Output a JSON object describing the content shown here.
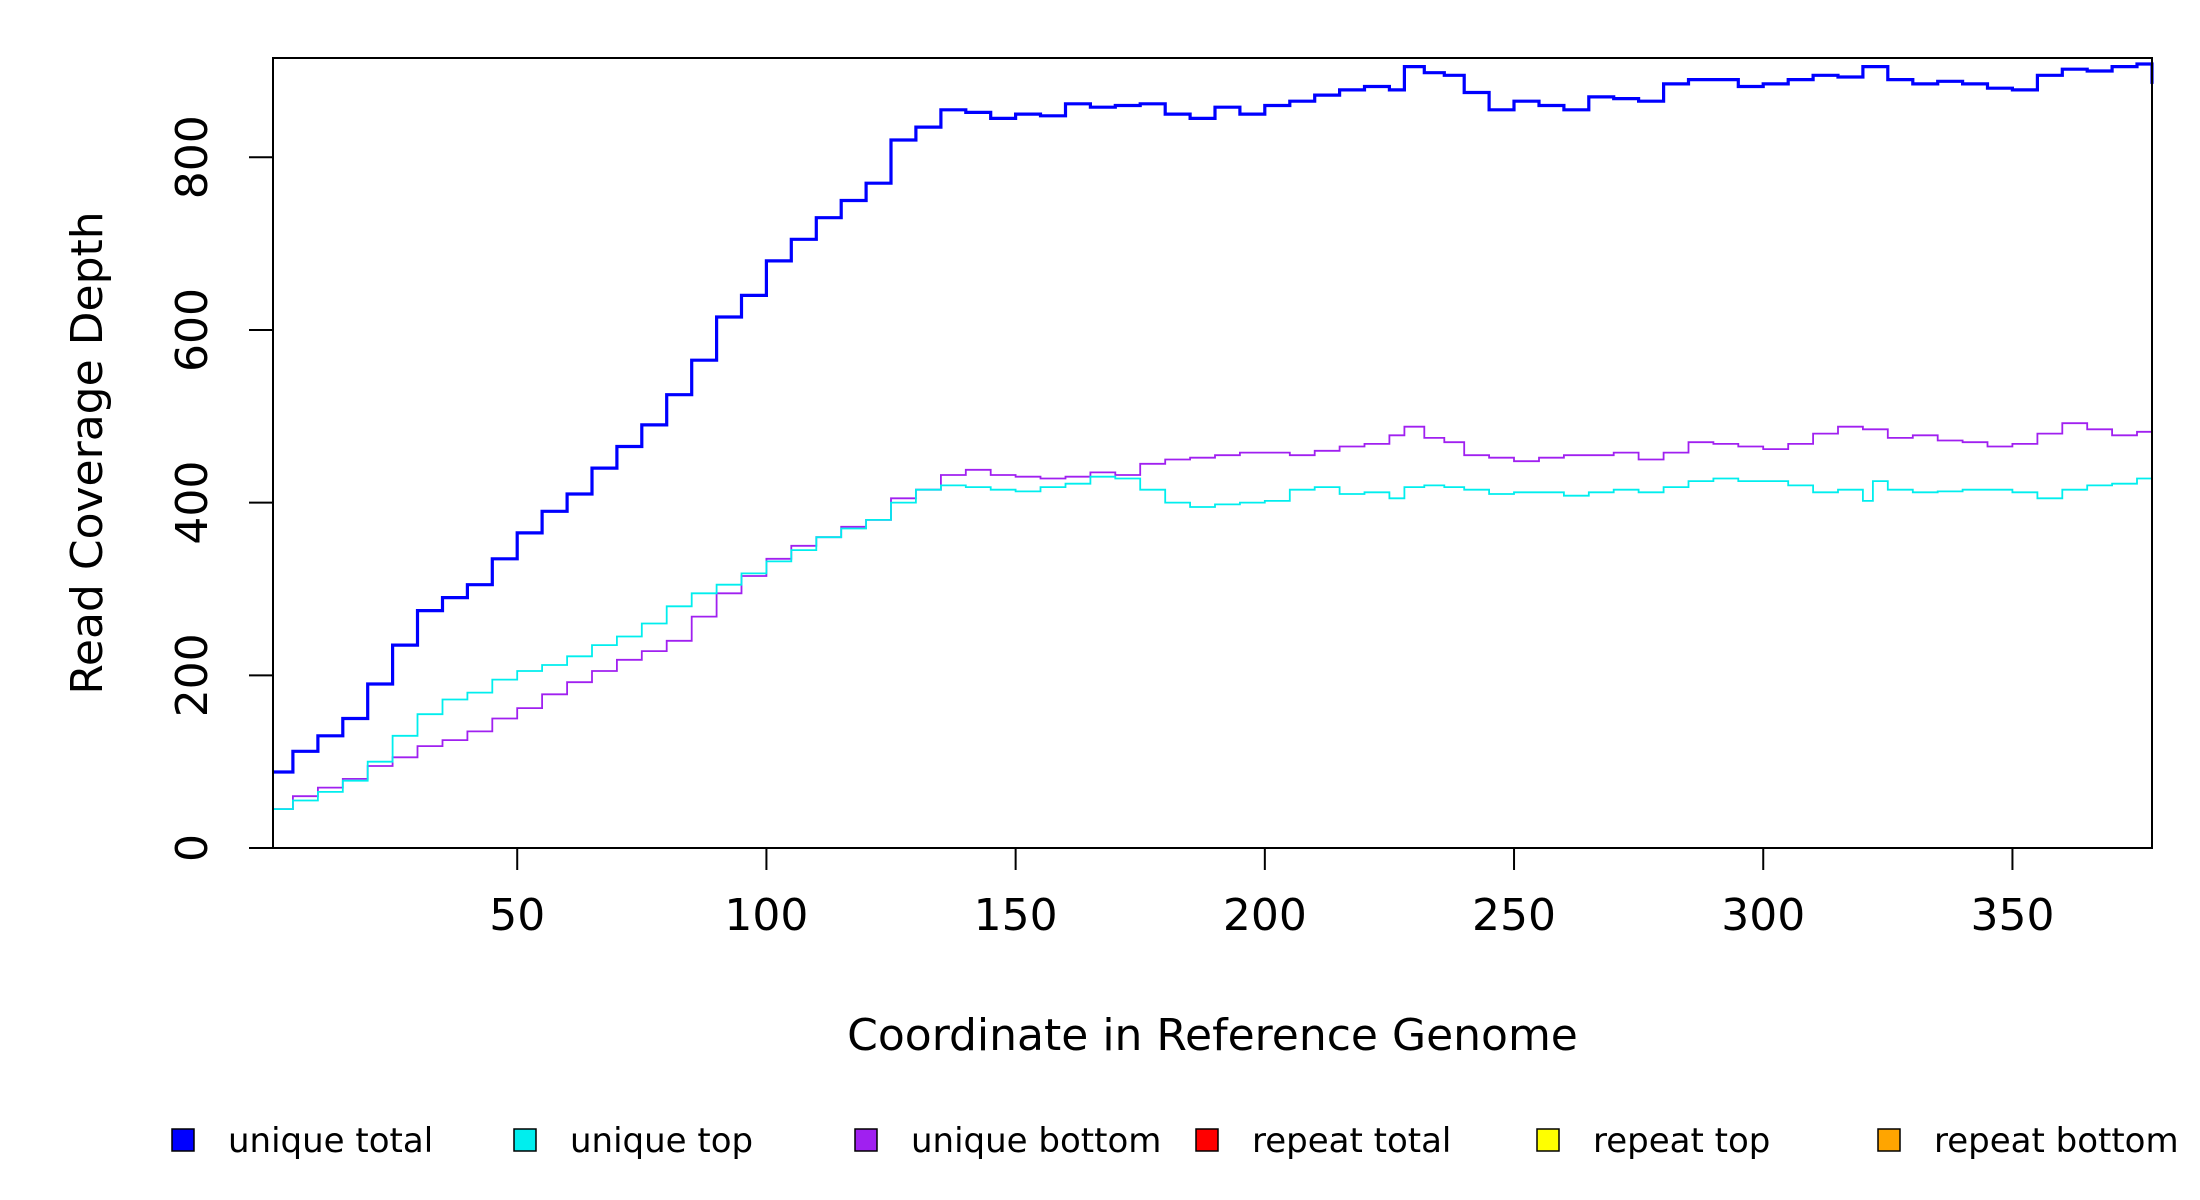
{
  "chart_data": {
    "type": "line",
    "step": true,
    "xlabel": "Coordinate in Reference Genome",
    "ylabel": "Read Coverage Depth",
    "xlim": [
      1,
      378
    ],
    "ylim": [
      0,
      915
    ],
    "xticks": [
      50,
      100,
      150,
      200,
      250,
      300,
      350
    ],
    "yticks": [
      0,
      200,
      400,
      600,
      800
    ],
    "legend_position": "bottom",
    "series": [
      {
        "name": "unique total",
        "color": "#0000ff",
        "points": [
          [
            1,
            88
          ],
          [
            5,
            112
          ],
          [
            10,
            130
          ],
          [
            15,
            150
          ],
          [
            20,
            190
          ],
          [
            25,
            235
          ],
          [
            30,
            275
          ],
          [
            35,
            290
          ],
          [
            40,
            305
          ],
          [
            45,
            335
          ],
          [
            50,
            365
          ],
          [
            55,
            390
          ],
          [
            60,
            410
          ],
          [
            65,
            440
          ],
          [
            70,
            465
          ],
          [
            75,
            490
          ],
          [
            80,
            525
          ],
          [
            85,
            565
          ],
          [
            90,
            615
          ],
          [
            95,
            640
          ],
          [
            100,
            680
          ],
          [
            105,
            705
          ],
          [
            110,
            730
          ],
          [
            115,
            750
          ],
          [
            120,
            770
          ],
          [
            125,
            820
          ],
          [
            130,
            835
          ],
          [
            135,
            855
          ],
          [
            140,
            852
          ],
          [
            145,
            845
          ],
          [
            150,
            850
          ],
          [
            155,
            848
          ],
          [
            160,
            862
          ],
          [
            165,
            858
          ],
          [
            170,
            860
          ],
          [
            175,
            862
          ],
          [
            180,
            850
          ],
          [
            185,
            845
          ],
          [
            190,
            858
          ],
          [
            195,
            850
          ],
          [
            200,
            860
          ],
          [
            205,
            865
          ],
          [
            210,
            872
          ],
          [
            215,
            878
          ],
          [
            220,
            882
          ],
          [
            225,
            878
          ],
          [
            228,
            905
          ],
          [
            232,
            898
          ],
          [
            236,
            895
          ],
          [
            240,
            875
          ],
          [
            245,
            855
          ],
          [
            250,
            865
          ],
          [
            255,
            860
          ],
          [
            260,
            855
          ],
          [
            265,
            870
          ],
          [
            270,
            868
          ],
          [
            275,
            865
          ],
          [
            280,
            885
          ],
          [
            285,
            890
          ],
          [
            290,
            890
          ],
          [
            295,
            882
          ],
          [
            300,
            885
          ],
          [
            305,
            890
          ],
          [
            310,
            895
          ],
          [
            315,
            893
          ],
          [
            320,
            905
          ],
          [
            325,
            890
          ],
          [
            330,
            885
          ],
          [
            335,
            888
          ],
          [
            340,
            885
          ],
          [
            345,
            880
          ],
          [
            350,
            878
          ],
          [
            355,
            895
          ],
          [
            360,
            902
          ],
          [
            365,
            900
          ],
          [
            370,
            905
          ],
          [
            375,
            908
          ],
          [
            378,
            885
          ]
        ]
      },
      {
        "name": "unique top",
        "color": "#00eeee",
        "points": [
          [
            1,
            45
          ],
          [
            5,
            55
          ],
          [
            10,
            65
          ],
          [
            15,
            78
          ],
          [
            20,
            100
          ],
          [
            25,
            130
          ],
          [
            30,
            155
          ],
          [
            35,
            172
          ],
          [
            40,
            180
          ],
          [
            45,
            195
          ],
          [
            50,
            205
          ],
          [
            55,
            212
          ],
          [
            60,
            222
          ],
          [
            65,
            235
          ],
          [
            70,
            245
          ],
          [
            75,
            260
          ],
          [
            80,
            280
          ],
          [
            85,
            295
          ],
          [
            90,
            305
          ],
          [
            95,
            318
          ],
          [
            100,
            332
          ],
          [
            105,
            345
          ],
          [
            110,
            360
          ],
          [
            115,
            370
          ],
          [
            120,
            380
          ],
          [
            125,
            400
          ],
          [
            130,
            415
          ],
          [
            135,
            420
          ],
          [
            140,
            418
          ],
          [
            145,
            415
          ],
          [
            150,
            413
          ],
          [
            155,
            418
          ],
          [
            160,
            422
          ],
          [
            165,
            430
          ],
          [
            170,
            428
          ],
          [
            175,
            415
          ],
          [
            180,
            400
          ],
          [
            185,
            395
          ],
          [
            190,
            398
          ],
          [
            195,
            400
          ],
          [
            200,
            402
          ],
          [
            205,
            415
          ],
          [
            210,
            418
          ],
          [
            215,
            410
          ],
          [
            220,
            412
          ],
          [
            225,
            405
          ],
          [
            228,
            418
          ],
          [
            232,
            420
          ],
          [
            236,
            418
          ],
          [
            240,
            415
          ],
          [
            245,
            410
          ],
          [
            250,
            412
          ],
          [
            255,
            412
          ],
          [
            260,
            408
          ],
          [
            265,
            412
          ],
          [
            270,
            415
          ],
          [
            275,
            412
          ],
          [
            280,
            418
          ],
          [
            285,
            425
          ],
          [
            290,
            428
          ],
          [
            295,
            425
          ],
          [
            300,
            425
          ],
          [
            305,
            420
          ],
          [
            310,
            412
          ],
          [
            315,
            415
          ],
          [
            320,
            402
          ],
          [
            322,
            425
          ],
          [
            325,
            415
          ],
          [
            330,
            412
          ],
          [
            335,
            413
          ],
          [
            340,
            415
          ],
          [
            345,
            415
          ],
          [
            350,
            412
          ],
          [
            355,
            405
          ],
          [
            360,
            415
          ],
          [
            365,
            420
          ],
          [
            370,
            422
          ],
          [
            375,
            428
          ],
          [
            378,
            418
          ]
        ]
      },
      {
        "name": "unique bottom",
        "color": "#a020f0",
        "points": [
          [
            1,
            45
          ],
          [
            5,
            60
          ],
          [
            10,
            70
          ],
          [
            15,
            80
          ],
          [
            20,
            95
          ],
          [
            25,
            105
          ],
          [
            30,
            118
          ],
          [
            35,
            125
          ],
          [
            40,
            135
          ],
          [
            45,
            150
          ],
          [
            50,
            162
          ],
          [
            55,
            178
          ],
          [
            60,
            192
          ],
          [
            65,
            205
          ],
          [
            70,
            218
          ],
          [
            75,
            228
          ],
          [
            80,
            240
          ],
          [
            85,
            268
          ],
          [
            90,
            295
          ],
          [
            95,
            315
          ],
          [
            100,
            335
          ],
          [
            105,
            350
          ],
          [
            110,
            360
          ],
          [
            115,
            372
          ],
          [
            120,
            380
          ],
          [
            125,
            405
          ],
          [
            130,
            415
          ],
          [
            135,
            432
          ],
          [
            140,
            438
          ],
          [
            145,
            432
          ],
          [
            150,
            430
          ],
          [
            155,
            428
          ],
          [
            160,
            430
          ],
          [
            165,
            435
          ],
          [
            170,
            432
          ],
          [
            175,
            445
          ],
          [
            180,
            450
          ],
          [
            185,
            452
          ],
          [
            190,
            455
          ],
          [
            195,
            458
          ],
          [
            200,
            458
          ],
          [
            205,
            455
          ],
          [
            210,
            460
          ],
          [
            215,
            465
          ],
          [
            220,
            468
          ],
          [
            225,
            478
          ],
          [
            228,
            488
          ],
          [
            232,
            475
          ],
          [
            236,
            470
          ],
          [
            240,
            455
          ],
          [
            245,
            452
          ],
          [
            250,
            448
          ],
          [
            255,
            452
          ],
          [
            260,
            455
          ],
          [
            265,
            455
          ],
          [
            270,
            458
          ],
          [
            275,
            450
          ],
          [
            280,
            458
          ],
          [
            285,
            470
          ],
          [
            290,
            468
          ],
          [
            295,
            465
          ],
          [
            300,
            462
          ],
          [
            305,
            468
          ],
          [
            310,
            480
          ],
          [
            315,
            488
          ],
          [
            320,
            485
          ],
          [
            325,
            475
          ],
          [
            330,
            478
          ],
          [
            335,
            472
          ],
          [
            340,
            470
          ],
          [
            345,
            465
          ],
          [
            350,
            468
          ],
          [
            355,
            480
          ],
          [
            360,
            492
          ],
          [
            365,
            485
          ],
          [
            370,
            478
          ],
          [
            375,
            482
          ],
          [
            378,
            470
          ]
        ]
      },
      {
        "name": "repeat total",
        "color": "#ff0000",
        "points": [
          [
            1,
            0
          ],
          [
            378,
            0
          ]
        ]
      },
      {
        "name": "repeat top",
        "color": "#ffff00",
        "points": [
          [
            1,
            0
          ],
          [
            378,
            0
          ]
        ]
      },
      {
        "name": "repeat bottom",
        "color": "#ffa500",
        "points": [
          [
            1,
            0
          ],
          [
            378,
            0
          ]
        ]
      }
    ]
  }
}
